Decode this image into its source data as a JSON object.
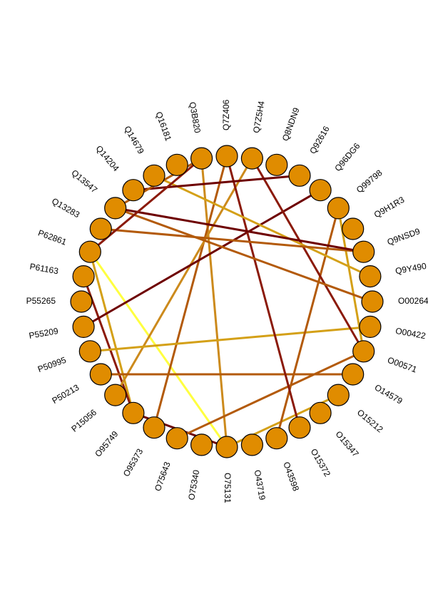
{
  "nodes": [
    "O00264",
    "Q9Y490",
    "Q9NSD9",
    "Q9H1R3",
    "Q99798",
    "Q96DG6",
    "Q92616",
    "Q8NDN9",
    "Q7Z5H4",
    "Q7Z406",
    "Q3B820",
    "Q16181",
    "Q14679",
    "Q14204",
    "Q13547",
    "Q13283",
    "P62861",
    "P61163",
    "P55265",
    "P55209",
    "P50995",
    "P50213",
    "P15056",
    "O95749",
    "O95373",
    "O75643",
    "O75340",
    "O75131",
    "O43719",
    "O43598",
    "O15372",
    "O15347",
    "O15212",
    "O14579",
    "O00571",
    "O00422"
  ],
  "edge_colors": {
    "yellow": "#ffff40",
    "gold": "#d4a017",
    "light_orange": "#cc8a1c",
    "orange": "#b35a0a",
    "dark_red": "#8b1a0a",
    "maroon": "#6e0000"
  },
  "edges": [
    {
      "source": "O75131",
      "target": "P62861",
      "color": "yellow"
    },
    {
      "source": "O75131",
      "target": "O95749",
      "color": "maroon"
    },
    {
      "source": "O75131",
      "target": "Q3B820",
      "color": "light_orange"
    },
    {
      "source": "O75131",
      "target": "O15212",
      "color": "gold"
    },
    {
      "source": "O75643",
      "target": "O00571",
      "color": "orange"
    },
    {
      "source": "O95373",
      "target": "Q7Z406",
      "color": "orange"
    },
    {
      "source": "O95749",
      "target": "P62861",
      "color": "gold"
    },
    {
      "source": "O95749",
      "target": "P61163",
      "color": "dark_red"
    },
    {
      "source": "P15056",
      "target": "Q7Z5H4",
      "color": "light_orange"
    },
    {
      "source": "P50213",
      "target": "O14579",
      "color": "orange"
    },
    {
      "source": "P50995",
      "target": "O00422",
      "color": "gold"
    },
    {
      "source": "P55209",
      "target": "Q96DG6",
      "color": "maroon"
    },
    {
      "source": "O43598",
      "target": "Q99798",
      "color": "orange"
    },
    {
      "source": "O15372",
      "target": "Q7Z406",
      "color": "dark_red"
    },
    {
      "source": "O00571",
      "target": "Q7Z5H4",
      "color": "dark_red"
    },
    {
      "source": "O00571",
      "target": "Q99798",
      "color": "gold"
    },
    {
      "source": "O00264",
      "target": "Q13547",
      "color": "orange"
    },
    {
      "source": "Q9Y490",
      "target": "Q14679",
      "color": "gold"
    },
    {
      "source": "Q9NSD9",
      "target": "Q13283",
      "color": "orange"
    },
    {
      "source": "Q9NSD9",
      "target": "Q13547",
      "color": "maroon"
    },
    {
      "source": "Q14204",
      "target": "Q92616",
      "color": "maroon"
    },
    {
      "source": "Q13547",
      "target": "Q3B820",
      "color": "orange"
    },
    {
      "source": "P62861",
      "target": "Q3B820",
      "color": "dark_red"
    }
  ]
}
